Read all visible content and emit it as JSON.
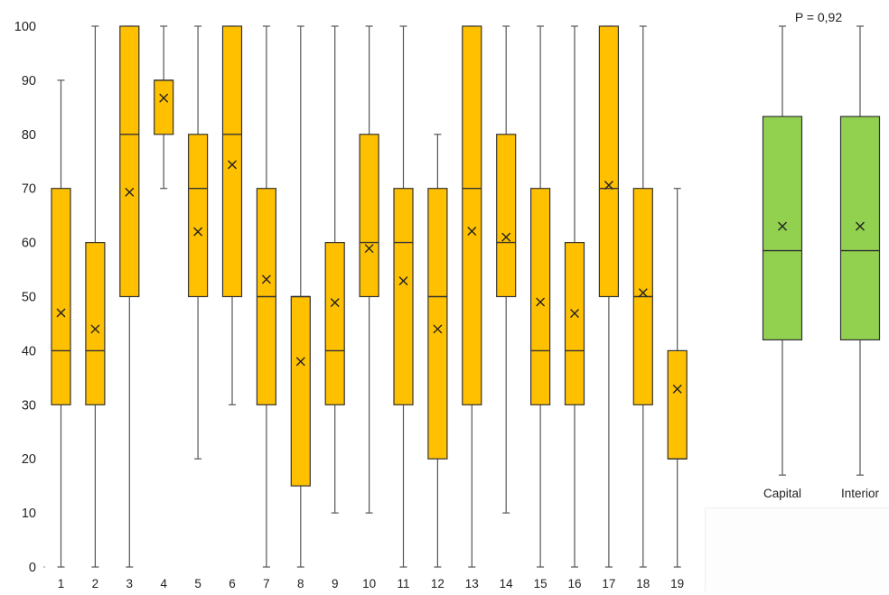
{
  "chart_data": [
    {
      "type": "box",
      "ylim": [
        0,
        100
      ],
      "yticks": [
        "0",
        "10",
        "20",
        "30",
        "40",
        "50",
        "60",
        "70",
        "80",
        "90",
        "100"
      ],
      "categories": [
        "1",
        "2",
        "3",
        "4",
        "5",
        "6",
        "7",
        "8",
        "9",
        "10",
        "11",
        "12",
        "13",
        "14",
        "15",
        "16",
        "17",
        "18",
        "19"
      ],
      "color": "#FFC000",
      "boxes": [
        {
          "label": "1",
          "min": 0,
          "q1": 30,
          "median": 40,
          "q3": 70,
          "max": 90,
          "mean": 47
        },
        {
          "label": "2",
          "min": 0,
          "q1": 30,
          "median": 40,
          "q3": 60,
          "max": 100,
          "mean": 44
        },
        {
          "label": "3",
          "min": 0,
          "q1": 50,
          "median": 80,
          "q3": 100,
          "max": 100,
          "mean": 69.3
        },
        {
          "label": "4",
          "min": 70,
          "q1": 80,
          "median": 90,
          "q3": 90,
          "max": 100,
          "mean": 86.7
        },
        {
          "label": "5",
          "min": 20,
          "q1": 50,
          "median": 70,
          "q3": 80,
          "max": 100,
          "mean": 62
        },
        {
          "label": "6",
          "min": 30,
          "q1": 50,
          "median": 80,
          "q3": 100,
          "max": 100,
          "mean": 74.4
        },
        {
          "label": "7",
          "min": 0,
          "q1": 30,
          "median": 50,
          "q3": 70,
          "max": 100,
          "mean": 53.2
        },
        {
          "label": "8",
          "min": 0,
          "q1": 15,
          "median": 50,
          "q3": 50,
          "max": 100,
          "mean": 38
        },
        {
          "label": "9",
          "min": 10,
          "q1": 30,
          "median": 40,
          "q3": 60,
          "max": 100,
          "mean": 48.9
        },
        {
          "label": "10",
          "min": 10,
          "q1": 50,
          "median": 60,
          "q3": 80,
          "max": 100,
          "mean": 58.9
        },
        {
          "label": "11",
          "min": 0,
          "q1": 30,
          "median": 60,
          "q3": 70,
          "max": 100,
          "mean": 52.9
        },
        {
          "label": "12",
          "min": 0,
          "q1": 20,
          "median": 50,
          "q3": 70,
          "max": 80,
          "mean": 44
        },
        {
          "label": "13",
          "min": 0,
          "q1": 30,
          "median": 70,
          "q3": 100,
          "max": 100,
          "mean": 62.1
        },
        {
          "label": "14",
          "min": 10,
          "q1": 50,
          "median": 60,
          "q3": 80,
          "max": 100,
          "mean": 61
        },
        {
          "label": "15",
          "min": 0,
          "q1": 30,
          "median": 40,
          "q3": 70,
          "max": 100,
          "mean": 49
        },
        {
          "label": "16",
          "min": 0,
          "q1": 30,
          "median": 40,
          "q3": 60,
          "max": 100,
          "mean": 46.9
        },
        {
          "label": "17",
          "min": 0,
          "q1": 50,
          "median": 70,
          "q3": 100,
          "max": 100,
          "mean": 70.6
        },
        {
          "label": "18",
          "min": 0,
          "q1": 30,
          "median": 50,
          "q3": 70,
          "max": 100,
          "mean": 50.7
        },
        {
          "label": "19",
          "min": 0,
          "q1": 20,
          "median": 20,
          "q3": 40,
          "max": 70,
          "mean": 32.9
        }
      ]
    },
    {
      "type": "box",
      "ylim": [
        0,
        100
      ],
      "annotation": "P = 0,92",
      "categories": [
        "Capital",
        "Interior"
      ],
      "color": "#92D050",
      "boxes": [
        {
          "label": "Capital",
          "min": 17,
          "q1": 42,
          "median": 58.5,
          "q3": 83.3,
          "max": 100,
          "mean": 63
        },
        {
          "label": "Interior",
          "min": 17,
          "q1": 42,
          "median": 58.5,
          "q3": 83.3,
          "max": 100,
          "mean": 63
        }
      ]
    }
  ]
}
